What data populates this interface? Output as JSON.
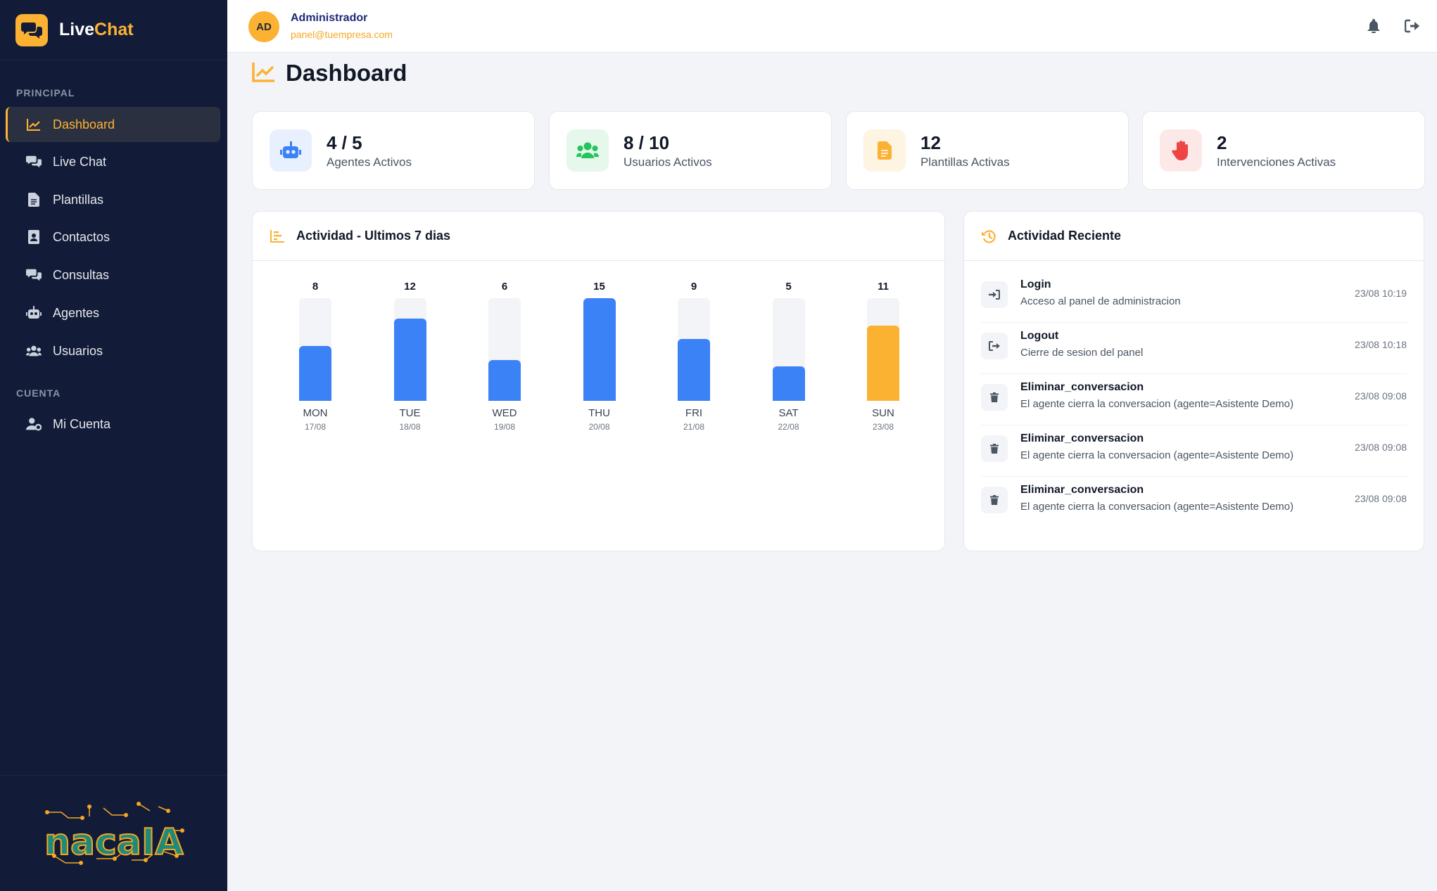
{
  "brand": {
    "name_part1": "Live",
    "name_part2": "Chat",
    "logo_icon": "chat-bubbles-icon"
  },
  "sidebar": {
    "sections": [
      {
        "title": "PRINCIPAL"
      },
      {
        "title": "CUENTA"
      }
    ],
    "items": [
      {
        "label": "Dashboard",
        "icon": "chart-line-icon",
        "active": true
      },
      {
        "label": "Live Chat",
        "icon": "comments-icon"
      },
      {
        "label": "Plantillas",
        "icon": "file-icon"
      },
      {
        "label": "Contactos",
        "icon": "address-book-icon"
      },
      {
        "label": "Consultas",
        "icon": "comments-icon"
      },
      {
        "label": "Agentes",
        "icon": "robot-icon"
      },
      {
        "label": "Usuarios",
        "icon": "users-icon"
      },
      {
        "label": "Mi Cuenta",
        "icon": "user-cog-icon"
      }
    ],
    "footer_logo": "nacaIA"
  },
  "user": {
    "initials": "AD",
    "name": "Administrador",
    "email": "panel@tuempresa.com"
  },
  "topbar": {
    "icons": [
      "bell-icon",
      "logout-icon"
    ]
  },
  "page": {
    "title": "Dashboard",
    "icon": "chart-line-icon"
  },
  "stats": [
    {
      "value": "4 / 5",
      "label": "Agentes Activos",
      "icon": "robot-icon",
      "color": "#3b82f6",
      "bg": "#e8f0fe"
    },
    {
      "value": "8 / 10",
      "label": "Usuarios Activos",
      "icon": "users-icon",
      "color": "#22c55e",
      "bg": "#e6f7ec"
    },
    {
      "value": "12",
      "label": "Plantillas Activas",
      "icon": "file-icon",
      "color": "#fbb233",
      "bg": "#fef4e2"
    },
    {
      "value": "2",
      "label": "Intervenciones Activas",
      "icon": "hand-icon",
      "color": "#ef4444",
      "bg": "#fde8e8"
    }
  ],
  "activity_chart": {
    "title": "Actividad - Ultimos 7 dias",
    "icon": "chart-bar-icon"
  },
  "chart_data": {
    "type": "bar",
    "categories": [
      "MON",
      "TUE",
      "WED",
      "THU",
      "FRI",
      "SAT",
      "SUN"
    ],
    "dates": [
      "17/08",
      "18/08",
      "19/08",
      "20/08",
      "21/08",
      "22/08",
      "23/08"
    ],
    "values": [
      8,
      12,
      6,
      15,
      9,
      5,
      11
    ],
    "ylim": [
      0,
      15
    ],
    "colors": [
      "#3b82f6",
      "#3b82f6",
      "#3b82f6",
      "#3b82f6",
      "#3b82f6",
      "#3b82f6",
      "#fbb233"
    ],
    "grid": false
  },
  "recent_activity": {
    "title": "Actividad Reciente",
    "icon": "history-icon",
    "items": [
      {
        "icon": "sign-in-icon",
        "title": "Login",
        "desc": "Acceso al panel de administracion",
        "time": "23/08 10:19"
      },
      {
        "icon": "sign-out-icon",
        "title": "Logout",
        "desc": "Cierre de sesion del panel",
        "time": "23/08 10:18"
      },
      {
        "icon": "trash-icon",
        "title": "Eliminar_conversacion",
        "desc": "El agente cierra la conversacion (agente=Asistente Demo)",
        "time": "23/08 09:08"
      },
      {
        "icon": "trash-icon",
        "title": "Eliminar_conversacion",
        "desc": "El agente cierra la conversacion (agente=Asistente Demo)",
        "time": "23/08 09:08"
      },
      {
        "icon": "trash-icon",
        "title": "Eliminar_conversacion",
        "desc": "El agente cierra la conversacion (agente=Asistente Demo)",
        "time": "23/08 09:08"
      }
    ]
  }
}
